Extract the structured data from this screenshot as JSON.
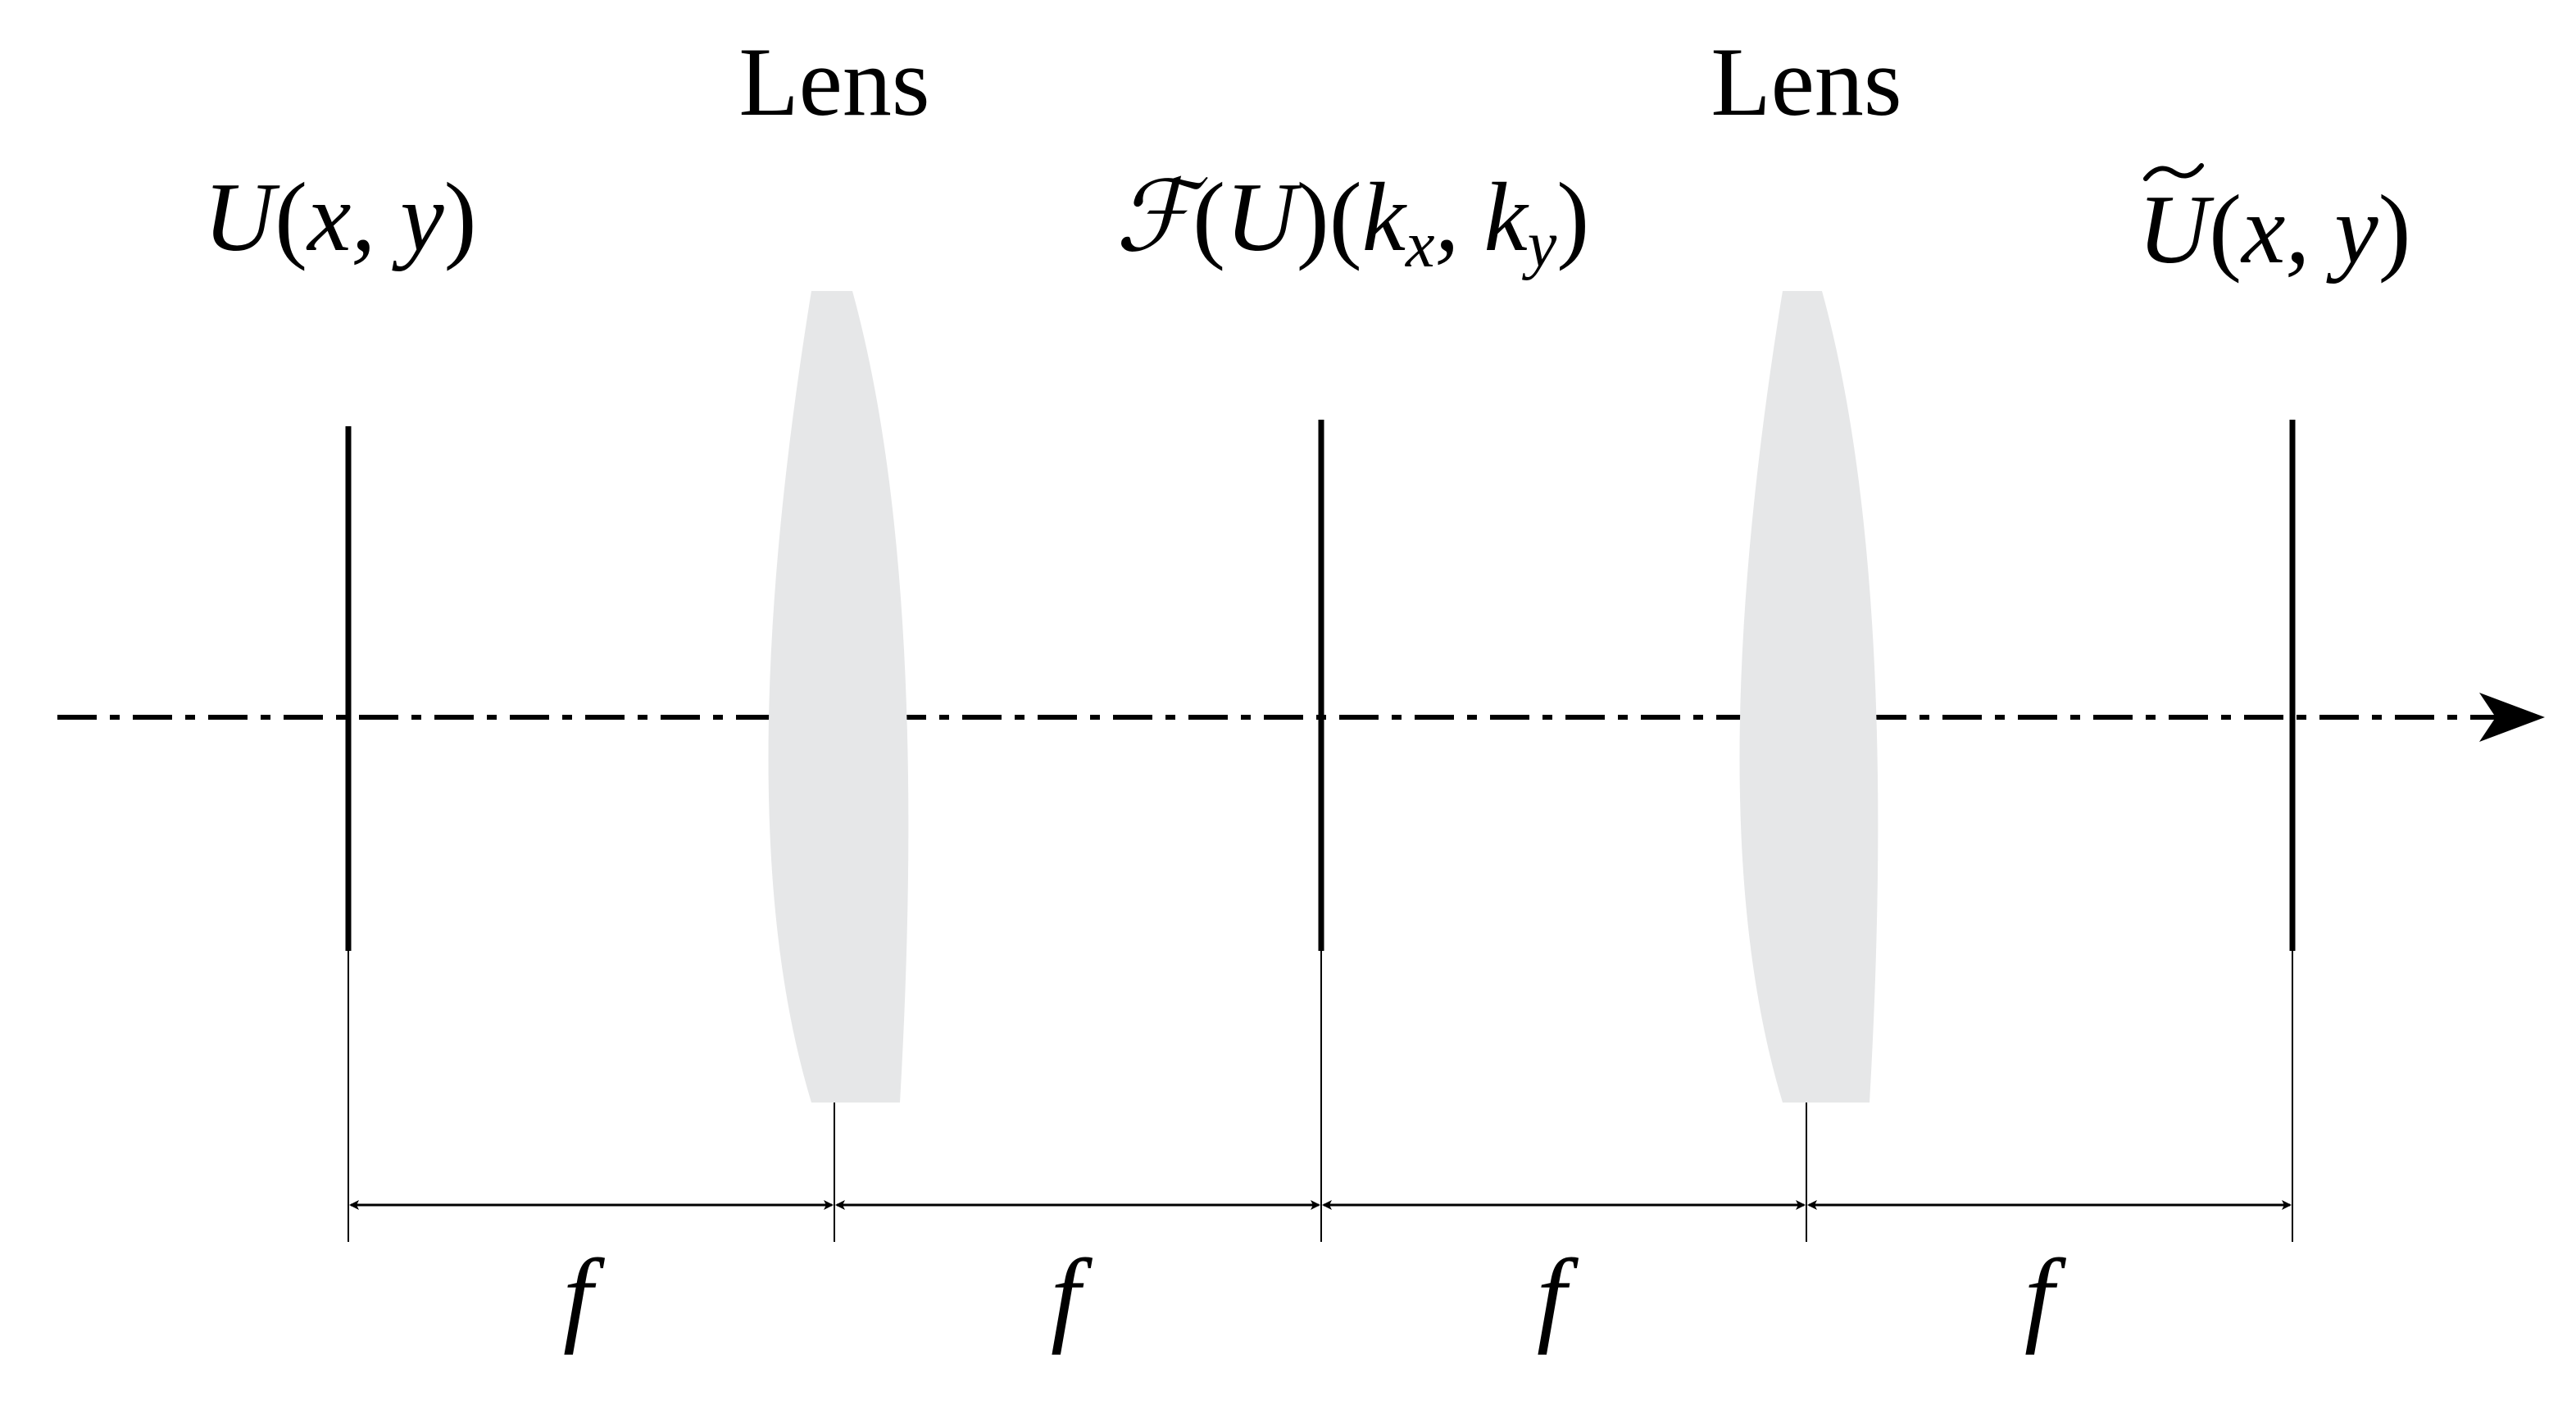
{
  "lenses": [
    {
      "label": "Lens"
    },
    {
      "label": "Lens"
    }
  ],
  "planes": [
    {
      "func": "U",
      "args": "x, y",
      "tilde": false
    },
    {
      "func": "ℱ",
      "middle": "U",
      "args": "k",
      "sub1": "x",
      "sep": ", k",
      "sub2": "y"
    },
    {
      "func": "U",
      "args": "x, y",
      "tilde": true
    }
  ],
  "distances": [
    "f",
    "f",
    "f",
    "f"
  ],
  "colors": {
    "line": "#000000",
    "lens_fill": "#e6e7e8",
    "background": "#ffffff"
  }
}
